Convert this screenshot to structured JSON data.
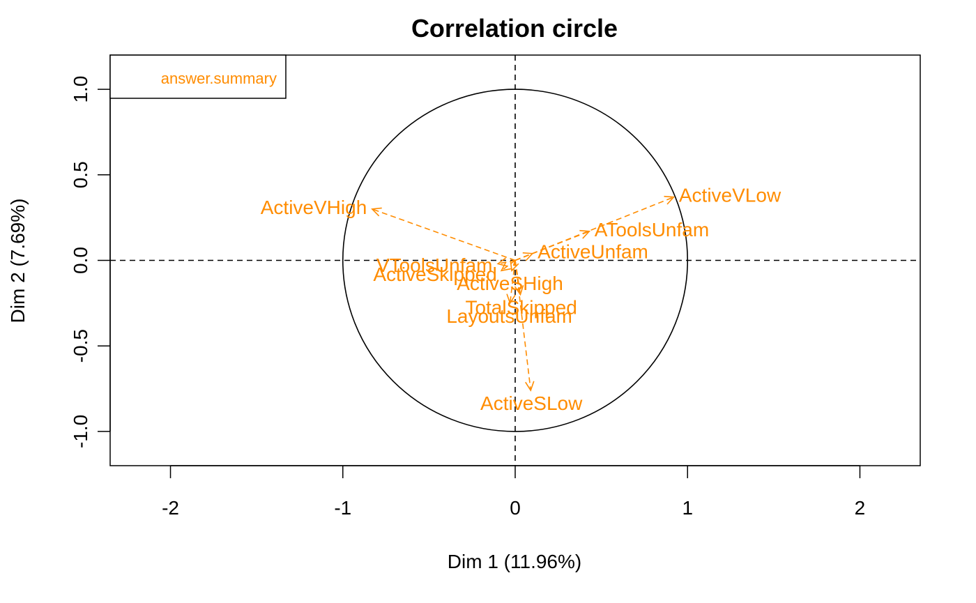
{
  "chart_data": {
    "type": "scatter",
    "subtype": "correlation-circle",
    "title": "Correlation circle",
    "xlabel": "Dim 1 (11.96%)",
    "ylabel": "Dim 2 (7.69%)",
    "xlim": [
      -2.35,
      2.35
    ],
    "ylim": [
      -1.2,
      1.2
    ],
    "x_ticks": [
      -2,
      -1,
      0,
      1,
      2
    ],
    "y_ticks": [
      -1.0,
      -0.5,
      0.0,
      0.5,
      1.0
    ],
    "x_tick_labels": [
      "-2",
      "-1",
      "0",
      "1",
      "2"
    ],
    "y_tick_labels": [
      "-1.0",
      "-0.5",
      "0.0",
      "0.5",
      "1.0"
    ],
    "unit_circle": true,
    "reference_lines": {
      "x": 0,
      "y": 0,
      "style": "dashed"
    },
    "legend": {
      "position": "top-left",
      "entries": [
        "answer.summary"
      ]
    },
    "color": "#FF8C00",
    "series": [
      {
        "name": "answer.summary",
        "points": [
          {
            "label": "ActiveVHigh",
            "x": -0.83,
            "y": 0.3
          },
          {
            "label": "ActiveVLow",
            "x": 0.92,
            "y": 0.37
          },
          {
            "label": "AToolsUnfam",
            "x": 0.43,
            "y": 0.17
          },
          {
            "label": "ActiveUnfam",
            "x": 0.1,
            "y": 0.04
          },
          {
            "label": "VToolsUnfam",
            "x": -0.1,
            "y": -0.02
          },
          {
            "label": "ActiveSHigh",
            "x": -0.02,
            "y": -0.06
          },
          {
            "label": "ActiveSkipped",
            "x": -0.08,
            "y": -0.06
          },
          {
            "label": "LayoutsUnfam",
            "x": -0.03,
            "y": -0.25
          },
          {
            "label": "TotalSkipped",
            "x": 0.03,
            "y": -0.2
          },
          {
            "label": "ActiveSLow",
            "x": 0.09,
            "y": -0.76
          }
        ]
      }
    ]
  }
}
